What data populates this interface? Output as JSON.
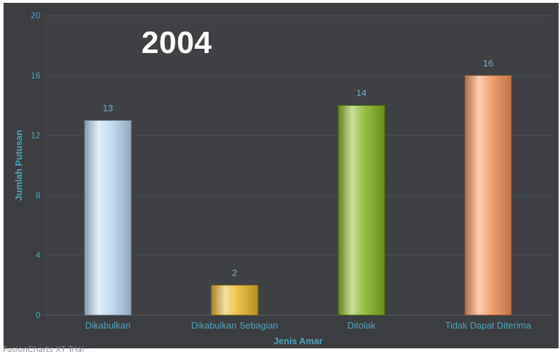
{
  "overlay": {
    "year_label": "2004"
  },
  "watermark": "FusionCharts XT Trial",
  "chart_data": {
    "type": "bar",
    "title": "",
    "xlabel": "Jenis Amar",
    "ylabel": "Jumlah Putusan",
    "ylim": [
      0,
      20
    ],
    "yticks": [
      0,
      4,
      8,
      12,
      16,
      20
    ],
    "grid": true,
    "categories": [
      "Dikabulkan",
      "Dikabulkan Sebagian",
      "Ditolak",
      "Tidak Dapat Diterima"
    ],
    "values": [
      13,
      2,
      14,
      16
    ],
    "colors": [
      "#bcd8f2",
      "#e8b92e",
      "#86b523",
      "#f2935c"
    ]
  },
  "colors": {
    "page_background": "#ffffff",
    "chart_background": "#3c3e41",
    "plot_background": "#3f4144",
    "gridline": "#4d5052",
    "axis_text": "#4fa2bd",
    "data_label": "#6fb0c9",
    "title_overlay": "#ffffff"
  }
}
